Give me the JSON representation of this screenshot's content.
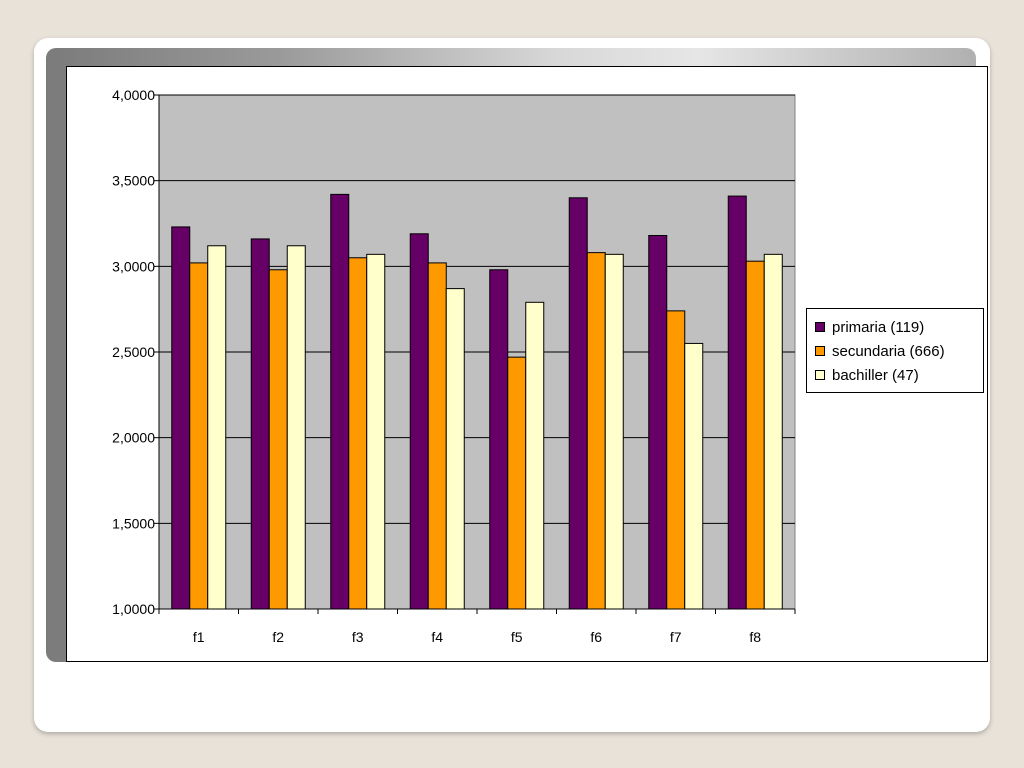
{
  "chart_data": {
    "type": "bar",
    "categories": [
      "f1",
      "f2",
      "f3",
      "f4",
      "f5",
      "f6",
      "f7",
      "f8"
    ],
    "series": [
      {
        "name": "primaria (119)",
        "color": "#660066",
        "values": [
          3.23,
          3.16,
          3.42,
          3.19,
          2.98,
          3.4,
          3.18,
          3.41
        ]
      },
      {
        "name": "secundaria (666)",
        "color": "#ff9900",
        "values": [
          3.02,
          2.98,
          3.05,
          3.02,
          2.47,
          3.08,
          2.74,
          3.03
        ]
      },
      {
        "name": "bachiller (47)",
        "color": "#ffffcc",
        "values": [
          3.12,
          3.12,
          3.07,
          2.87,
          2.79,
          3.07,
          2.55,
          3.07
        ]
      }
    ],
    "ylim": [
      1.0,
      4.0
    ],
    "yticks": [
      "1,0000",
      "1,5000",
      "2,0000",
      "2,5000",
      "3,0000",
      "3,5000",
      "4,0000"
    ],
    "ytick_values": [
      1.0,
      1.5,
      2.0,
      2.5,
      3.0,
      3.5,
      4.0
    ],
    "title": "",
    "xlabel": "",
    "ylabel": "",
    "grid": true,
    "plot_background": "#c0c0c0",
    "legend_position": "right"
  }
}
